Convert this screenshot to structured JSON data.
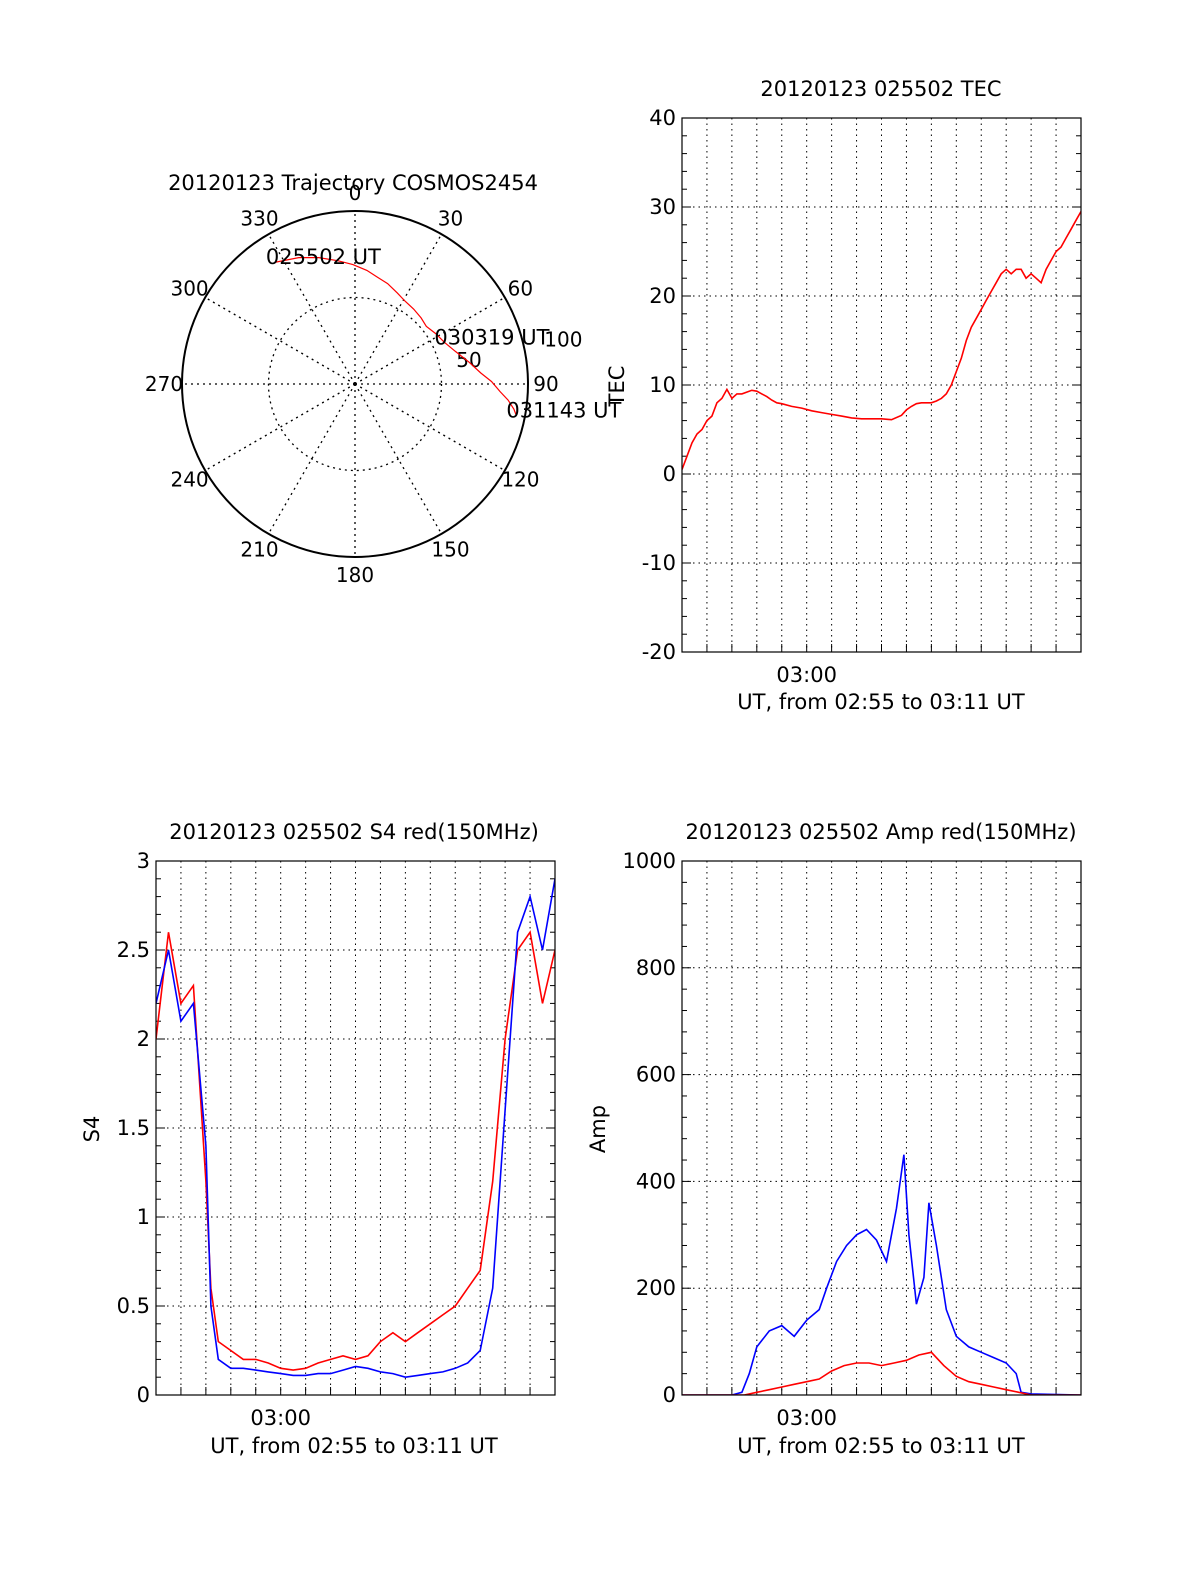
{
  "colors": {
    "red": "#ff0000",
    "blue": "#0000ff",
    "axis": "#000000",
    "grid": "#000000"
  },
  "chart_data": [
    {
      "type": "polar",
      "title": "20120123 Trajectory COSMOS2454",
      "angle_labels": [
        "0",
        "30",
        "60",
        "90",
        "120",
        "150",
        "180",
        "210",
        "240",
        "270",
        "300",
        "330"
      ],
      "radial_labels": [
        "50",
        "100"
      ],
      "grid": true,
      "trajectory": {
        "color": "#ff0000",
        "points": [
          [
            327,
            84
          ],
          [
            336,
            80
          ],
          [
            344,
            76
          ],
          [
            352,
            72
          ],
          [
            359,
            69
          ],
          [
            6,
            66
          ],
          [
            12,
            63
          ],
          [
            18,
            61
          ],
          [
            25,
            58
          ],
          [
            31,
            56
          ],
          [
            38,
            55
          ],
          [
            45,
            54
          ],
          [
            51,
            53
          ],
          [
            58,
            55
          ],
          [
            65,
            57
          ],
          [
            72,
            61
          ],
          [
            79,
            67
          ],
          [
            85,
            73
          ],
          [
            89,
            79
          ],
          [
            93,
            84
          ],
          [
            96,
            89
          ],
          [
            99,
            93
          ],
          [
            101,
            95
          ]
        ],
        "point_labels": [
          {
            "text": "025502 UT",
            "az": 327,
            "el": 84
          },
          {
            "text": "030319 UT",
            "az": 65,
            "el": 57
          },
          {
            "text": "031143 UT",
            "az": 101,
            "el": 95
          }
        ]
      }
    },
    {
      "type": "line",
      "title": "20120123 025502 TEC",
      "xlabel": "UT, from 02:55 to 03:11 UT",
      "ylabel": "TEC",
      "xlim": [
        0,
        16
      ],
      "ylim": [
        -20,
        40
      ],
      "yticks": [
        "-20",
        "-10",
        "0",
        "10",
        "20",
        "30",
        "40"
      ],
      "xtick_labels": [
        {
          "x": 5,
          "label": "03:00"
        }
      ],
      "grid": true,
      "series": [
        {
          "color": "#ff0000",
          "x": [
            0,
            0.2,
            0.4,
            0.6,
            0.8,
            1.0,
            1.2,
            1.4,
            1.6,
            1.8,
            2.0,
            2.2,
            2.4,
            2.6,
            2.8,
            3.0,
            3.2,
            3.4,
            3.6,
            3.8,
            4.0,
            4.4,
            4.8,
            5.2,
            5.6,
            6.0,
            6.4,
            6.8,
            7.2,
            7.6,
            8.0,
            8.4,
            8.8,
            9.0,
            9.2,
            9.4,
            9.6,
            9.8,
            10.0,
            10.2,
            10.4,
            10.6,
            10.8,
            11.0,
            11.2,
            11.4,
            11.6,
            11.8,
            12.0,
            12.2,
            12.4,
            12.6,
            12.8,
            13.0,
            13.2,
            13.4,
            13.6,
            13.8,
            14.0,
            14.2,
            14.4,
            14.6,
            14.8,
            15.0,
            15.2,
            15.4,
            15.6,
            15.8,
            16.0
          ],
          "y": [
            0.5,
            2,
            3.5,
            4.5,
            5,
            6,
            6.5,
            8,
            8.5,
            9.5,
            8.5,
            9,
            9,
            9.2,
            9.4,
            9.3,
            9,
            8.7,
            8.3,
            8.0,
            7.9,
            7.6,
            7.4,
            7.1,
            6.9,
            6.7,
            6.5,
            6.3,
            6.2,
            6.2,
            6.2,
            6.1,
            6.6,
            7.2,
            7.6,
            7.9,
            8.0,
            8.0,
            8.0,
            8.2,
            8.5,
            9,
            10,
            11.5,
            13,
            15,
            16.5,
            17.5,
            18.5,
            19.5,
            20.5,
            21.5,
            22.5,
            23,
            22.5,
            23,
            23,
            22,
            22.5,
            22,
            21.5,
            23,
            24,
            25,
            25.5,
            26.5,
            27.5,
            28.5,
            29.5
          ]
        }
      ]
    },
    {
      "type": "line",
      "title": "20120123 025502 S4 red(150MHz)",
      "xlabel": "UT, from 02:55 to 03:11 UT",
      "ylabel": "S4",
      "xlim": [
        0,
        16
      ],
      "ylim": [
        0,
        3
      ],
      "yticks": [
        "0",
        "0.5",
        "1",
        "1.5",
        "2",
        "2.5",
        "3"
      ],
      "xtick_labels": [
        {
          "x": 5,
          "label": "03:00"
        }
      ],
      "grid": true,
      "series": [
        {
          "color": "#ff0000",
          "x": [
            0,
            0.5,
            1.0,
            1.5,
            2.0,
            2.2,
            2.5,
            3.0,
            3.5,
            4.0,
            4.5,
            5.0,
            5.5,
            6.0,
            6.5,
            7.0,
            7.5,
            8.0,
            8.5,
            9.0,
            9.5,
            10.0,
            10.5,
            11.0,
            11.5,
            12.0,
            12.5,
            13.0,
            13.5,
            14.0,
            14.5,
            15.0,
            15.5,
            16.0
          ],
          "y": [
            2.0,
            2.6,
            2.2,
            2.3,
            1.2,
            0.6,
            0.3,
            0.25,
            0.2,
            0.2,
            0.18,
            0.15,
            0.14,
            0.15,
            0.18,
            0.2,
            0.22,
            0.2,
            0.22,
            0.3,
            0.35,
            0.3,
            0.35,
            0.4,
            0.45,
            0.5,
            0.6,
            0.7,
            1.2,
            2.0,
            2.5,
            2.6,
            2.2,
            2.5
          ]
        },
        {
          "color": "#0000ff",
          "x": [
            0,
            0.5,
            1.0,
            1.5,
            2.0,
            2.2,
            2.5,
            3.0,
            3.5,
            4.0,
            4.5,
            5.0,
            5.5,
            6.0,
            6.5,
            7.0,
            7.5,
            8.0,
            8.5,
            9.0,
            9.5,
            10.0,
            10.5,
            11.0,
            11.5,
            12.0,
            12.5,
            13.0,
            13.5,
            14.0,
            14.5,
            15.0,
            15.5,
            16.0
          ],
          "y": [
            2.2,
            2.5,
            2.1,
            2.2,
            1.4,
            0.5,
            0.2,
            0.15,
            0.15,
            0.14,
            0.13,
            0.12,
            0.11,
            0.11,
            0.12,
            0.12,
            0.14,
            0.16,
            0.15,
            0.13,
            0.12,
            0.1,
            0.11,
            0.12,
            0.13,
            0.15,
            0.18,
            0.25,
            0.6,
            1.6,
            2.6,
            2.8,
            2.5,
            2.9
          ]
        }
      ]
    },
    {
      "type": "line",
      "title": "20120123 025502 Amp red(150MHz)",
      "xlabel": "UT, from 02:55 to 03:11 UT",
      "ylabel": "Amp",
      "xlim": [
        0,
        16
      ],
      "ylim": [
        0,
        1000
      ],
      "yticks": [
        "0",
        "200",
        "400",
        "600",
        "800",
        "1000"
      ],
      "xtick_labels": [
        {
          "x": 5,
          "label": "03:00"
        }
      ],
      "grid": true,
      "series": [
        {
          "color": "#0000ff",
          "x": [
            0,
            2.0,
            2.4,
            2.7,
            3.0,
            3.5,
            4.0,
            4.5,
            5.0,
            5.5,
            5.8,
            6.2,
            6.6,
            7.0,
            7.4,
            7.8,
            8.2,
            8.6,
            8.9,
            9.1,
            9.4,
            9.7,
            9.9,
            10.2,
            10.6,
            11.0,
            11.5,
            12.0,
            12.5,
            13.0,
            13.4,
            13.6,
            14.0,
            16.0
          ],
          "y": [
            0,
            0,
            5,
            40,
            90,
            120,
            130,
            110,
            140,
            160,
            200,
            250,
            280,
            300,
            310,
            290,
            250,
            350,
            450,
            300,
            170,
            220,
            360,
            280,
            160,
            110,
            90,
            80,
            70,
            60,
            40,
            5,
            2,
            0
          ]
        },
        {
          "color": "#ff0000",
          "x": [
            0,
            2.5,
            3.0,
            3.5,
            4.0,
            4.5,
            5.0,
            5.5,
            6.0,
            6.5,
            7.0,
            7.5,
            8.0,
            8.5,
            9.0,
            9.5,
            10.0,
            10.5,
            11.0,
            11.5,
            12.0,
            12.5,
            13.0,
            13.5,
            14.0,
            16.0
          ],
          "y": [
            0,
            0,
            5,
            10,
            15,
            20,
            25,
            30,
            45,
            55,
            60,
            60,
            55,
            60,
            65,
            75,
            80,
            55,
            35,
            25,
            20,
            15,
            10,
            5,
            0,
            0
          ]
        }
      ]
    }
  ]
}
